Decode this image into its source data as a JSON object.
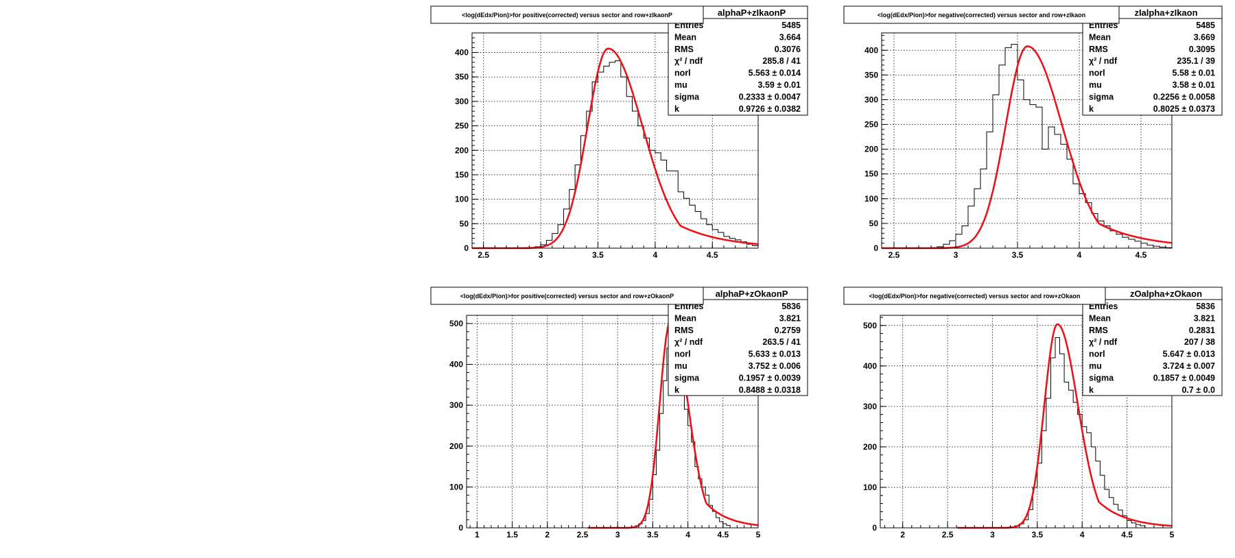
{
  "colors": {
    "histogram": "#000000",
    "fit": "#e8141c",
    "grid": "#000000",
    "frame": "#000000"
  },
  "chart_data": [
    {
      "type": "histogram",
      "title": "<log(dEdx/Pion)>for positive(corrected) versus sector and row+zIkaonP",
      "stats_header": "alphaP+zIkaonP",
      "stats": [
        {
          "label": "Entries",
          "value": "5485"
        },
        {
          "label": "Mean",
          "value": "3.664"
        },
        {
          "label": "RMS",
          "value": "0.3076"
        },
        {
          "label": "χ² / ndf",
          "value": "285.8 / 41"
        },
        {
          "label": "norl",
          "value": "5.563 ± 0.014"
        },
        {
          "label": "mu",
          "value": "3.59 ± 0.01"
        },
        {
          "label": "sigma",
          "value": "0.2333 ± 0.0047"
        },
        {
          "label": "k",
          "value": "0.9726 ± 0.0382"
        }
      ],
      "xlim": [
        2.4,
        4.9
      ],
      "ylim": [
        0,
        440
      ],
      "xticks": [
        2.5,
        3,
        3.5,
        4,
        4.5
      ],
      "xticklabels": [
        "2.5",
        "3",
        "3.5",
        "4",
        "4.5"
      ],
      "yticks": [
        0,
        50,
        100,
        150,
        200,
        250,
        300,
        350,
        400
      ],
      "yticklabels": [
        "0",
        "50",
        "100",
        "150",
        "200",
        "250",
        "300",
        "350",
        "400"
      ],
      "bins": {
        "start": 2.4,
        "width": 0.05,
        "counts": [
          0,
          0,
          0,
          0,
          0,
          0,
          0,
          0,
          0,
          0,
          1,
          3,
          7,
          16,
          30,
          48,
          80,
          120,
          170,
          230,
          280,
          340,
          360,
          372,
          380,
          383,
          350,
          310,
          280,
          250,
          225,
          200,
          195,
          180,
          158,
          158,
          115,
          102,
          88,
          75,
          60,
          48,
          38,
          32,
          24,
          20,
          17,
          13,
          8,
          5
        ]
      },
      "fit": {
        "norm": 408,
        "mu": 3.59,
        "sigma": 0.2333,
        "k": 0.9726
      }
    },
    {
      "type": "histogram",
      "title": "<log(dEdx/Pion)>for negative(corrected) versus sector and row+zIkaon",
      "stats_header": "zIalpha+zIkaon",
      "stats": [
        {
          "label": "Entries",
          "value": "5485"
        },
        {
          "label": "Mean",
          "value": "3.669"
        },
        {
          "label": "RMS",
          "value": "0.3095"
        },
        {
          "label": "χ² / ndf",
          "value": "235.1 / 39"
        },
        {
          "label": "norl",
          "value": "5.58 ± 0.01"
        },
        {
          "label": "mu",
          "value": "3.58 ± 0.01"
        },
        {
          "label": "sigma",
          "value": "0.2256 ± 0.0058"
        },
        {
          "label": "k",
          "value": "0.8025 ± 0.0373"
        }
      ],
      "xlim": [
        2.4,
        4.75
      ],
      "ylim": [
        0,
        435
      ],
      "xticks": [
        2.5,
        3,
        3.5,
        4,
        4.5
      ],
      "xticklabels": [
        "2.5",
        "3",
        "3.5",
        "4",
        "4.5"
      ],
      "yticks": [
        0,
        50,
        100,
        150,
        200,
        250,
        300,
        350,
        400
      ],
      "yticklabels": [
        "0",
        "50",
        "100",
        "150",
        "200",
        "250",
        "300",
        "350",
        "400"
      ],
      "bins": {
        "start": 2.4,
        "width": 0.05,
        "counts": [
          0,
          0,
          0,
          0,
          0,
          0,
          0,
          0,
          1,
          3,
          8,
          15,
          28,
          45,
          85,
          120,
          160,
          235,
          310,
          370,
          405,
          412,
          340,
          300,
          290,
          285,
          200,
          245,
          230,
          210,
          180,
          130,
          110,
          92,
          70,
          55,
          45,
          35,
          28,
          22,
          18,
          14,
          10,
          6,
          4,
          2,
          1
        ]
      },
      "fit": {
        "norm": 408,
        "mu": 3.58,
        "sigma": 0.2256,
        "k": 0.8025
      }
    },
    {
      "type": "histogram",
      "title": "<log(dEdx/Pion)>for positive(corrected) versus sector and row+zOkaonP",
      "stats_header": "alphaP+zOkaonP",
      "stats": [
        {
          "label": "Entries",
          "value": "5836"
        },
        {
          "label": "Mean",
          "value": "3.821"
        },
        {
          "label": "RMS",
          "value": "0.2759"
        },
        {
          "label": "χ² / ndf",
          "value": "263.5 / 41"
        },
        {
          "label": "norl",
          "value": "5.633 ± 0.013"
        },
        {
          "label": "mu",
          "value": "3.752 ± 0.006"
        },
        {
          "label": "sigma",
          "value": "0.1957 ± 0.0039"
        },
        {
          "label": "k",
          "value": "0.8488 ± 0.0318"
        }
      ],
      "xlim": [
        0.85,
        5
      ],
      "ylim": [
        0,
        520
      ],
      "xticks": [
        1,
        1.5,
        2,
        2.5,
        3,
        3.5,
        4,
        4.5,
        5
      ],
      "xticklabels": [
        "1",
        "1.5",
        "2",
        "2.5",
        "3",
        "3.5",
        "4",
        "4.5",
        "5"
      ],
      "yticks": [
        0,
        100,
        200,
        300,
        400,
        500
      ],
      "yticklabels": [
        "0",
        "100",
        "200",
        "300",
        "400",
        "500"
      ],
      "bins": {
        "start": 3.2,
        "width": 0.05,
        "counts": [
          2,
          5,
          10,
          18,
          35,
          70,
          130,
          190,
          280,
          360,
          440,
          495,
          520,
          505,
          330,
          290,
          250,
          210,
          150,
          120,
          100,
          80,
          55,
          40,
          25,
          15,
          10,
          6
        ]
      },
      "fit": {
        "norm": 505,
        "mu": 3.752,
        "sigma": 0.1957,
        "k": 0.8488
      }
    },
    {
      "type": "histogram",
      "title": "<log(dEdx/Pion)>for negative(corrected) versus sector and row+zOkaon",
      "stats_header": "zOalpha+zOkaon",
      "stats": [
        {
          "label": "Entries",
          "value": "5836"
        },
        {
          "label": "Mean",
          "value": "3.821"
        },
        {
          "label": "RMS",
          "value": "0.2831"
        },
        {
          "label": "χ² / ndf",
          "value": "207 / 38"
        },
        {
          "label": "norl",
          "value": "5.647 ± 0.013"
        },
        {
          "label": "mu",
          "value": "3.724 ± 0.007"
        },
        {
          "label": "sigma",
          "value": "0.1857 ± 0.0049"
        },
        {
          "label": "k",
          "value": "0.7 ± 0.0"
        }
      ],
      "xlim": [
        1.75,
        5
      ],
      "ylim": [
        0,
        525
      ],
      "xticks": [
        2,
        2.5,
        3,
        3.5,
        4,
        4.5,
        5
      ],
      "xticklabels": [
        "2",
        "2.5",
        "3",
        "3.5",
        "4",
        "4.5",
        "5"
      ],
      "yticks": [
        0,
        100,
        200,
        300,
        400,
        500
      ],
      "yticklabels": [
        "0",
        "100",
        "200",
        "300",
        "400",
        "500"
      ],
      "bins": {
        "start": 3.2,
        "width": 0.05,
        "counts": [
          2,
          5,
          10,
          20,
          45,
          100,
          160,
          240,
          320,
          420,
          470,
          430,
          360,
          340,
          310,
          280,
          250,
          235,
          200,
          165,
          130,
          95,
          75,
          58,
          44,
          30,
          18,
          12,
          8,
          5
        ]
      },
      "fit": {
        "norm": 503,
        "mu": 3.724,
        "sigma": 0.1857,
        "k": 0.7
      }
    }
  ]
}
